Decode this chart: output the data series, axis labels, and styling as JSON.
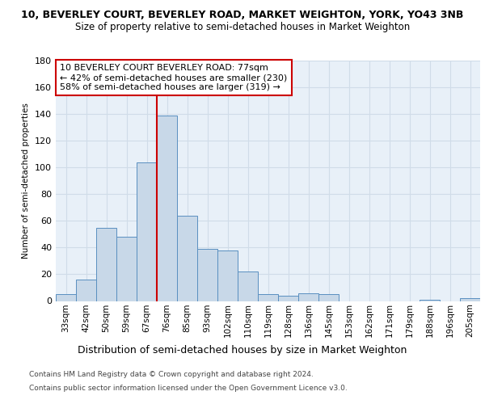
{
  "title1": "10, BEVERLEY COURT, BEVERLEY ROAD, MARKET WEIGHTON, YORK, YO43 3NB",
  "title2": "Size of property relative to semi-detached houses in Market Weighton",
  "xlabel": "Distribution of semi-detached houses by size in Market Weighton",
  "ylabel": "Number of semi-detached properties",
  "footnote1": "Contains HM Land Registry data © Crown copyright and database right 2024.",
  "footnote2": "Contains public sector information licensed under the Open Government Licence v3.0.",
  "categories": [
    "33sqm",
    "42sqm",
    "50sqm",
    "59sqm",
    "67sqm",
    "76sqm",
    "85sqm",
    "93sqm",
    "102sqm",
    "110sqm",
    "119sqm",
    "128sqm",
    "136sqm",
    "145sqm",
    "153sqm",
    "162sqm",
    "171sqm",
    "179sqm",
    "188sqm",
    "196sqm",
    "205sqm"
  ],
  "values": [
    5,
    16,
    55,
    48,
    104,
    139,
    64,
    39,
    38,
    22,
    5,
    4,
    6,
    5,
    0,
    0,
    0,
    0,
    1,
    0,
    2
  ],
  "bar_color": "#c8d8e8",
  "bar_edge_color": "#5a8fc0",
  "grid_color": "#d0dce8",
  "background_color": "#e8f0f8",
  "annotation_box_text": "10 BEVERLEY COURT BEVERLEY ROAD: 77sqm\n← 42% of semi-detached houses are smaller (230)\n58% of semi-detached houses are larger (319) →",
  "annotation_box_color": "#ffffff",
  "annotation_box_edge_color": "#cc0000",
  "vline_color": "#cc0000",
  "vline_index": 5,
  "ylim": [
    0,
    180
  ],
  "yticks": [
    0,
    20,
    40,
    60,
    80,
    100,
    120,
    140,
    160,
    180
  ]
}
